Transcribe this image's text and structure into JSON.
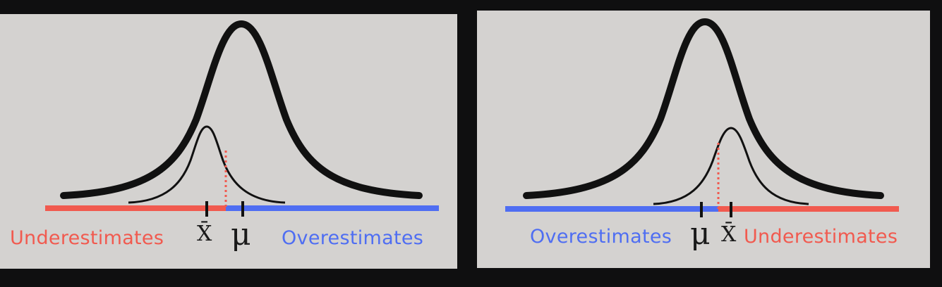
{
  "left_panel": {
    "label_left": "Underestimates",
    "label_right": "Overestimates",
    "symbol_sample_mean": "X̄",
    "symbol_population_mean": "μ"
  },
  "right_panel": {
    "label_left": "Overestimates",
    "label_right": "Underestimates",
    "symbol_population_mean": "μ",
    "symbol_sample_mean": "X̄"
  },
  "colors": {
    "underestimate": "#f15a4f",
    "overestimate": "#4f6ef2",
    "curve": "#111111",
    "panel_background": "#d4d2d0",
    "page_background": "#0f0f10"
  }
}
